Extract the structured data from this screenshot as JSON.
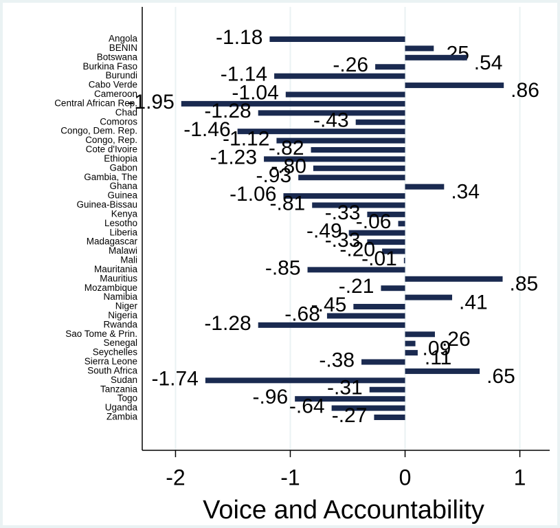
{
  "chart_data": {
    "type": "bar",
    "orientation": "horizontal",
    "x_label": "Voice and Accountability",
    "categories": [
      "Angola",
      "BENIN",
      "Botswana",
      "Burkina Faso",
      "Burundi",
      "Cabo Verde",
      "Cameroon",
      "Central African Rep.",
      "Chad",
      "Comoros",
      "Congo, Dem. Rep.",
      "Congo, Rep.",
      "Cote d'Ivoire",
      "Ethiopia",
      "Gabon",
      "Gambia, The",
      "Ghana",
      "Guinea",
      "Guinea-Bissau",
      "Kenya",
      "Lesotho",
      "Liberia",
      "Madagascar",
      "Malawi",
      "Mali",
      "Mauritania",
      "Mauritius",
      "Mozambique",
      "Namibia",
      "Niger",
      "Nigeria",
      "Rwanda",
      "Sao Tome & Prin.",
      "Senegal",
      "Seychelles",
      "Sierra Leone",
      "South Africa",
      "Sudan",
      "Tanzania",
      "Togo",
      "Uganda",
      "Zambia"
    ],
    "values": [
      -1.18,
      0.25,
      0.54,
      -0.26,
      -1.14,
      0.86,
      -1.04,
      -1.95,
      -1.28,
      -0.43,
      -1.46,
      -1.12,
      -0.82,
      -1.23,
      -0.8,
      -0.93,
      0.34,
      -1.06,
      -0.81,
      -0.33,
      -0.06,
      -0.49,
      -0.33,
      -0.2,
      -0.01,
      -0.85,
      0.85,
      -0.21,
      0.41,
      -0.45,
      -0.68,
      -1.28,
      0.26,
      0.09,
      0.11,
      -0.38,
      0.65,
      -1.74,
      -0.31,
      -0.96,
      -0.64,
      -0.27
    ],
    "value_labels": [
      "-1.18",
      ".25",
      ".54",
      "-.26",
      "-1.14",
      ".86",
      "-1.04",
      "-1.95",
      "-1.28",
      "-.43",
      "-1.46",
      "-1.12",
      "-.82",
      "-1.23",
      "-.80",
      "-.93",
      ".34",
      "-1.06",
      "-.81",
      "-.33",
      "-.06",
      "-.49",
      "-.33",
      "-.20",
      "-.01",
      "-.85",
      ".85",
      "-.21",
      ".41",
      "-.45",
      "-.68",
      "-1.28",
      ".26",
      ".09",
      ".11",
      "-.38",
      ".65",
      "-1.74",
      "-.31",
      "-.96",
      "-.64",
      "-.27"
    ],
    "color": "#1a2a50",
    "xlim": [
      -2.29,
      1.26
    ],
    "xticks": [
      -2,
      -1,
      0,
      1
    ],
    "grid": true
  }
}
